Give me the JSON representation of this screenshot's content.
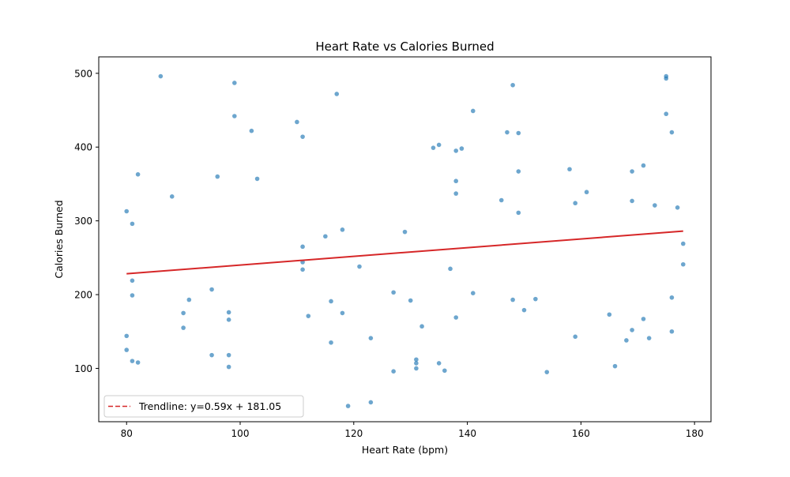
{
  "chart_data": {
    "type": "scatter",
    "title": "Heart Rate vs Calories Burned",
    "xlabel": "Heart Rate (bpm)",
    "ylabel": "Calories Burned",
    "xlim": [
      75.1,
      182.9
    ],
    "ylim": [
      27.7,
      522.3
    ],
    "x_ticks": [
      80,
      100,
      120,
      140,
      160,
      180
    ],
    "y_ticks": [
      100,
      200,
      300,
      400,
      500
    ],
    "grid": false,
    "legend_position": "lower-left",
    "colors": {
      "points": "#1f77b4",
      "trendline": "#d62728"
    },
    "series": [
      {
        "points": [
          [
            86,
            496
          ],
          [
            99,
            487
          ],
          [
            117,
            472
          ],
          [
            148,
            484
          ],
          [
            175,
            496
          ],
          [
            175,
            493
          ],
          [
            99,
            442
          ],
          [
            102,
            422
          ],
          [
            110,
            434
          ],
          [
            111,
            414
          ],
          [
            141,
            449
          ],
          [
            147,
            420
          ],
          [
            149,
            419
          ],
          [
            175,
            445
          ],
          [
            176,
            420
          ],
          [
            134,
            399
          ],
          [
            135,
            403
          ],
          [
            138,
            395
          ],
          [
            139,
            398
          ],
          [
            82,
            363
          ],
          [
            96,
            360
          ],
          [
            103,
            357
          ],
          [
            138,
            354
          ],
          [
            149,
            367
          ],
          [
            158,
            370
          ],
          [
            169,
            367
          ],
          [
            171,
            375
          ],
          [
            88,
            333
          ],
          [
            138,
            337
          ],
          [
            146,
            328
          ],
          [
            161,
            339
          ],
          [
            159,
            324
          ],
          [
            169,
            327
          ],
          [
            173,
            321
          ],
          [
            177,
            318
          ],
          [
            80,
            313
          ],
          [
            81,
            296
          ],
          [
            118,
            288
          ],
          [
            115,
            279
          ],
          [
            129,
            285
          ],
          [
            149,
            311
          ],
          [
            111,
            265
          ],
          [
            111,
            244
          ],
          [
            111,
            234
          ],
          [
            121,
            238
          ],
          [
            137,
            235
          ],
          [
            178,
            269
          ],
          [
            178,
            241
          ],
          [
            81,
            219
          ],
          [
            81,
            199
          ],
          [
            95,
            207
          ],
          [
            91,
            193
          ],
          [
            90,
            175
          ],
          [
            98,
            176
          ],
          [
            98,
            166
          ],
          [
            90,
            155
          ],
          [
            112,
            171
          ],
          [
            116,
            191
          ],
          [
            118,
            175
          ],
          [
            127,
            203
          ],
          [
            130,
            192
          ],
          [
            138,
            169
          ],
          [
            141,
            202
          ],
          [
            148,
            193
          ],
          [
            150,
            179
          ],
          [
            152,
            194
          ],
          [
            176,
            196
          ],
          [
            80,
            144
          ],
          [
            80,
            125
          ],
          [
            81,
            110
          ],
          [
            82,
            108
          ],
          [
            95,
            118
          ],
          [
            98,
            118
          ],
          [
            98,
            102
          ],
          [
            116,
            135
          ],
          [
            123,
            141
          ],
          [
            131,
            112
          ],
          [
            131,
            107
          ],
          [
            131,
            100
          ],
          [
            132,
            157
          ],
          [
            135,
            107
          ],
          [
            136,
            97
          ],
          [
            127,
            96
          ],
          [
            154,
            95
          ],
          [
            159,
            143
          ],
          [
            165,
            173
          ],
          [
            166,
            103
          ],
          [
            168,
            138
          ],
          [
            169,
            152
          ],
          [
            171,
            167
          ],
          [
            172,
            141
          ],
          [
            176,
            150
          ],
          [
            119,
            49
          ],
          [
            123,
            54
          ]
        ]
      }
    ],
    "trendline": {
      "slope": 0.59,
      "intercept": 181.05,
      "x_range": [
        80,
        178
      ],
      "label": "Trendline: y=0.59x + 181.05"
    }
  }
}
